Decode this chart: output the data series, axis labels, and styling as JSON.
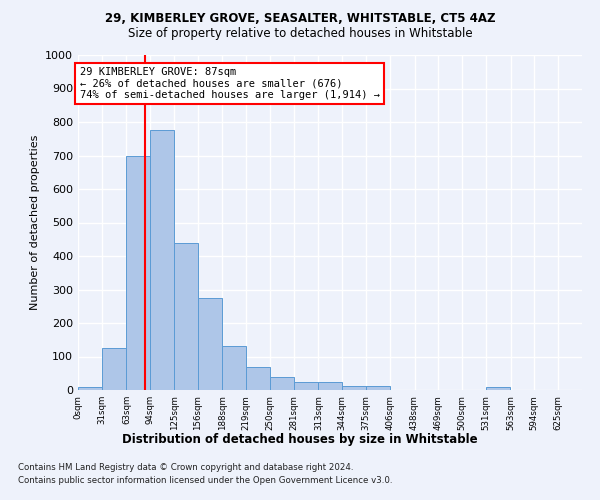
{
  "title1": "29, KIMBERLEY GROVE, SEASALTER, WHITSTABLE, CT5 4AZ",
  "title2": "Size of property relative to detached houses in Whitstable",
  "xlabel": "Distribution of detached houses by size in Whitstable",
  "ylabel": "Number of detached properties",
  "categories": [
    "0sqm",
    "31sqm",
    "63sqm",
    "94sqm",
    "125sqm",
    "156sqm",
    "188sqm",
    "219sqm",
    "250sqm",
    "281sqm",
    "313sqm",
    "344sqm",
    "375sqm",
    "406sqm",
    "438sqm",
    "469sqm",
    "500sqm",
    "531sqm",
    "563sqm",
    "594sqm",
    "625sqm"
  ],
  "values": [
    8,
    125,
    700,
    775,
    440,
    275,
    130,
    70,
    40,
    25,
    25,
    12,
    12,
    0,
    0,
    0,
    0,
    8,
    0,
    0,
    0
  ],
  "bar_color": "#aec6e8",
  "bar_edge_color": "#5b9bd5",
  "reference_line_x": 87,
  "reference_line_color": "red",
  "annotation_line1": "29 KIMBERLEY GROVE: 87sqm",
  "annotation_line2": "← 26% of detached houses are smaller (676)",
  "annotation_line3": "74% of semi-detached houses are larger (1,914) →",
  "annotation_box_color": "white",
  "annotation_box_edge": "red",
  "ylim": [
    0,
    1000
  ],
  "yticks": [
    0,
    100,
    200,
    300,
    400,
    500,
    600,
    700,
    800,
    900,
    1000
  ],
  "footnote1": "Contains HM Land Registry data © Crown copyright and database right 2024.",
  "footnote2": "Contains public sector information licensed under the Open Government Licence v3.0.",
  "background_color": "#eef2fb",
  "grid_color": "#ffffff",
  "bin_width": 31,
  "x_starts": [
    0,
    31,
    63,
    94,
    125,
    156,
    188,
    219,
    250,
    281,
    313,
    344,
    375,
    406,
    438,
    469,
    500,
    531,
    563,
    594,
    625
  ]
}
